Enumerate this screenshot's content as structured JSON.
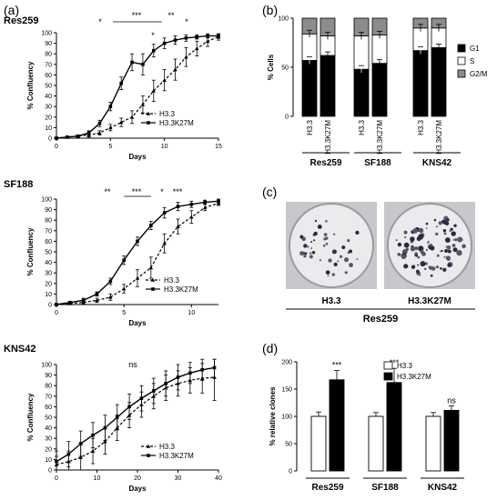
{
  "panels": {
    "a": "(a)",
    "b": "(b)",
    "c": "(c)",
    "d": "(d)"
  },
  "growth": [
    {
      "cell_line": "Res259",
      "ylabel": "% Confluency",
      "xlabel": "Days",
      "xlim": [
        0,
        15
      ],
      "ylim": [
        0,
        100
      ],
      "xticks": [
        0,
        5,
        10,
        15
      ],
      "yticks": [
        0,
        10,
        20,
        30,
        40,
        50,
        60,
        70,
        80,
        90,
        100
      ],
      "significance": [
        "*",
        "***",
        "*",
        "**",
        "*"
      ],
      "series": [
        {
          "name": "H3.3",
          "style": "dashed",
          "x": [
            0,
            1,
            2,
            3,
            4,
            5,
            6,
            7,
            8,
            9,
            10,
            11,
            12,
            13,
            14,
            15
          ],
          "y": [
            0,
            1,
            2,
            3,
            5,
            10,
            15,
            20,
            32,
            45,
            55,
            65,
            77,
            85,
            92,
            96
          ],
          "err": [
            1,
            1,
            1,
            2,
            2,
            3,
            4,
            6,
            8,
            10,
            10,
            10,
            9,
            7,
            5,
            3
          ]
        },
        {
          "name": "H3.3K27M",
          "style": "solid",
          "x": [
            0,
            1,
            2,
            3,
            4,
            5,
            6,
            7,
            8,
            9,
            10,
            11,
            12,
            13,
            14,
            15
          ],
          "y": [
            0,
            1,
            2,
            5,
            14,
            30,
            52,
            72,
            70,
            83,
            90,
            93,
            95,
            96,
            97,
            97
          ],
          "err": [
            1,
            1,
            1,
            2,
            3,
            4,
            6,
            8,
            10,
            6,
            5,
            4,
            3,
            2,
            2,
            2
          ]
        }
      ]
    },
    {
      "cell_line": "SF188",
      "ylabel": "% Confluency",
      "xlabel": "Days",
      "xlim": [
        0,
        12
      ],
      "ylim": [
        0,
        100
      ],
      "xticks": [
        0,
        5,
        10
      ],
      "yticks": [
        0,
        10,
        20,
        30,
        40,
        50,
        60,
        70,
        80,
        90,
        100
      ],
      "significance": [
        "**",
        "***",
        "*",
        "***"
      ],
      "series": [
        {
          "name": "H3.3",
          "style": "dashed",
          "x": [
            0,
            1,
            2,
            3,
            4,
            5,
            6,
            7,
            8,
            9,
            10,
            11,
            12
          ],
          "y": [
            0,
            1,
            2,
            4,
            7,
            15,
            25,
            35,
            58,
            74,
            83,
            92,
            96
          ],
          "err": [
            1,
            1,
            1,
            2,
            3,
            4,
            8,
            10,
            9,
            7,
            6,
            3,
            2
          ]
        },
        {
          "name": "H3.3K27M",
          "style": "solid",
          "x": [
            0,
            1,
            2,
            3,
            4,
            5,
            6,
            7,
            8,
            9,
            10,
            11,
            12
          ],
          "y": [
            0,
            2,
            4,
            10,
            22,
            42,
            60,
            75,
            87,
            93,
            95,
            97,
            98
          ],
          "err": [
            1,
            1,
            2,
            2,
            3,
            4,
            4,
            4,
            5,
            4,
            3,
            2,
            2
          ]
        }
      ]
    },
    {
      "cell_line": "KNS42",
      "ylabel": "% Confluency",
      "xlabel": "Days",
      "xlim": [
        0,
        40
      ],
      "ylim": [
        0,
        100
      ],
      "xticks": [
        0,
        10,
        20,
        30,
        40
      ],
      "yticks": [
        0,
        10,
        20,
        30,
        40,
        50,
        60,
        70,
        80,
        90,
        100
      ],
      "significance": [
        "ns"
      ],
      "series": [
        {
          "name": "H3.3",
          "style": "dashed",
          "x": [
            0,
            3,
            6,
            9,
            12,
            15,
            18,
            21,
            24,
            27,
            30,
            33,
            36,
            39
          ],
          "y": [
            5,
            8,
            12,
            18,
            27,
            40,
            52,
            62,
            70,
            78,
            82,
            85,
            87,
            88
          ],
          "err": [
            8,
            10,
            12,
            12,
            12,
            12,
            12,
            12,
            12,
            12,
            12,
            12,
            14,
            22
          ]
        },
        {
          "name": "H3.3K27M",
          "style": "solid",
          "x": [
            0,
            3,
            6,
            9,
            12,
            15,
            18,
            21,
            24,
            27,
            30,
            33,
            36,
            39
          ],
          "y": [
            8,
            15,
            25,
            33,
            40,
            50,
            60,
            68,
            75,
            82,
            88,
            92,
            95,
            97
          ],
          "err": [
            10,
            12,
            12,
            12,
            12,
            12,
            12,
            12,
            12,
            12,
            12,
            10,
            10,
            10
          ]
        }
      ]
    }
  ],
  "cell_cycle": {
    "ylabel": "% Cells",
    "ylim": [
      0,
      100
    ],
    "yticks": [
      0,
      50,
      100
    ],
    "groups": [
      "Res259",
      "SF188",
      "KNS42"
    ],
    "bars": [
      {
        "group": "Res259",
        "label": "H3.3",
        "g1": 57,
        "s": 27,
        "g2m": 16
      },
      {
        "group": "Res259",
        "label": "H3.3K27M",
        "g1": 62,
        "s": 20,
        "g2m": 18
      },
      {
        "group": "SF188",
        "label": "H3.3",
        "g1": 48,
        "s": 34,
        "g2m": 18
      },
      {
        "group": "SF188",
        "label": "H3.3K27M",
        "g1": 54,
        "s": 29,
        "g2m": 17
      },
      {
        "group": "KNS42",
        "label": "H3.3",
        "g1": 67,
        "s": 23,
        "g2m": 10
      },
      {
        "group": "KNS42",
        "label": "H3.3K27M",
        "g1": 70,
        "s": 20,
        "g2m": 10
      }
    ],
    "legend": [
      {
        "key": "g1",
        "label": "G1",
        "color": "#000000"
      },
      {
        "key": "s",
        "label": "S",
        "color": "#ffffff"
      },
      {
        "key": "g2m",
        "label": "G2/M",
        "color": "#8c8c8c"
      }
    ]
  },
  "clonogenic": {
    "dish_labels": [
      "H3.3",
      "H3.3K27M"
    ],
    "cell_line": "Res259"
  },
  "chart_data": {
    "type": "bar",
    "ylabel": "% relative clones",
    "ylim": [
      0,
      200
    ],
    "yticks": [
      0,
      50,
      100,
      150,
      200
    ],
    "categories": [
      "Res259",
      "SF188",
      "KNS42"
    ],
    "series": [
      {
        "name": "H3.3",
        "color": "#ffffff",
        "values": [
          100,
          100,
          100
        ],
        "err": [
          8,
          7,
          7
        ]
      },
      {
        "name": "H3.3K27M",
        "color": "#000000",
        "values": [
          167,
          162,
          111
        ],
        "err": [
          17,
          26,
          8
        ]
      }
    ],
    "significance": [
      "***",
      "***",
      "ns"
    ]
  }
}
